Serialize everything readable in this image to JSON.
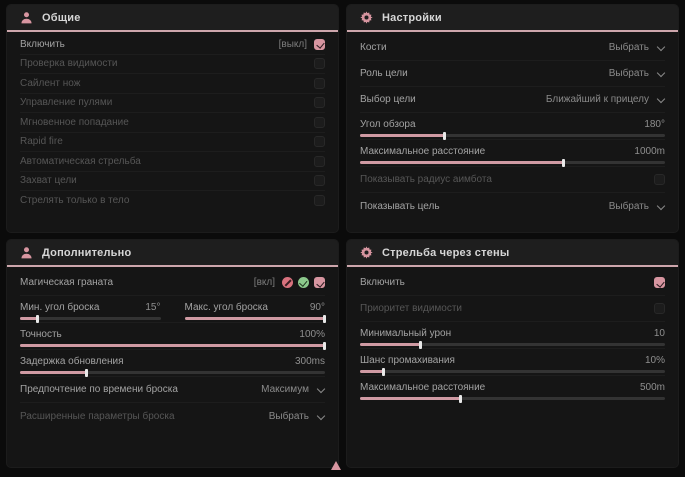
{
  "accent": "#d795a0",
  "general": {
    "title": "Общие",
    "items": [
      {
        "label": "Включить",
        "state": "[выкл]"
      },
      {
        "label": "Проверка видимости"
      },
      {
        "label": "Сайлент нож"
      },
      {
        "label": "Управление пулями"
      },
      {
        "label": "Мгновенное попадание"
      },
      {
        "label": "Rapid fire"
      },
      {
        "label": "Автоматическая стрельба"
      },
      {
        "label": "Захват цели"
      },
      {
        "label": "Стрелять только в тело"
      }
    ]
  },
  "settings": {
    "title": "Настройки",
    "bones": {
      "label": "Кости",
      "value": "Выбрать"
    },
    "role": {
      "label": "Роль цели",
      "value": "Выбрать"
    },
    "target": {
      "label": "Выбор цели",
      "value": "Ближайший к прицелу"
    },
    "fov": {
      "label": "Угол обзора",
      "value": "180°",
      "percent": 28
    },
    "distance": {
      "label": "Максимальное расстояние",
      "value": "1000m",
      "percent": 67
    },
    "radius": {
      "label": "Показывать радиус аимбота"
    },
    "show_target": {
      "label": "Показывать цель",
      "value": "Выбрать"
    }
  },
  "additional": {
    "title": "Дополнительно",
    "grenade": {
      "label": "Магическая граната",
      "state": "[вкл]"
    },
    "min_angle": {
      "label": "Мин. угол броска",
      "value": "15°",
      "percent": 13
    },
    "max_angle": {
      "label": "Макс. угол броска",
      "value": "90°",
      "percent": 100
    },
    "accuracy": {
      "label": "Точность",
      "value": "100%",
      "percent": 100
    },
    "delay": {
      "label": "Задержка обновления",
      "value": "300ms",
      "percent": 22
    },
    "throw_time": {
      "label": "Предпочтение по времени броска",
      "value": "Максимум"
    },
    "advanced": {
      "label": "Расширенные параметры броска",
      "value": "Выбрать"
    }
  },
  "walls": {
    "title": "Стрельба через стены",
    "enable": {
      "label": "Включить"
    },
    "visibility": {
      "label": "Приоритет видимости"
    },
    "min_damage": {
      "label": "Минимальный урон",
      "value": "10",
      "percent": 20
    },
    "miss_chance": {
      "label": "Шанс промахивания",
      "value": "10%",
      "percent": 8
    },
    "distance": {
      "label": "Максимальное расстояние",
      "value": "500m",
      "percent": 33
    }
  }
}
